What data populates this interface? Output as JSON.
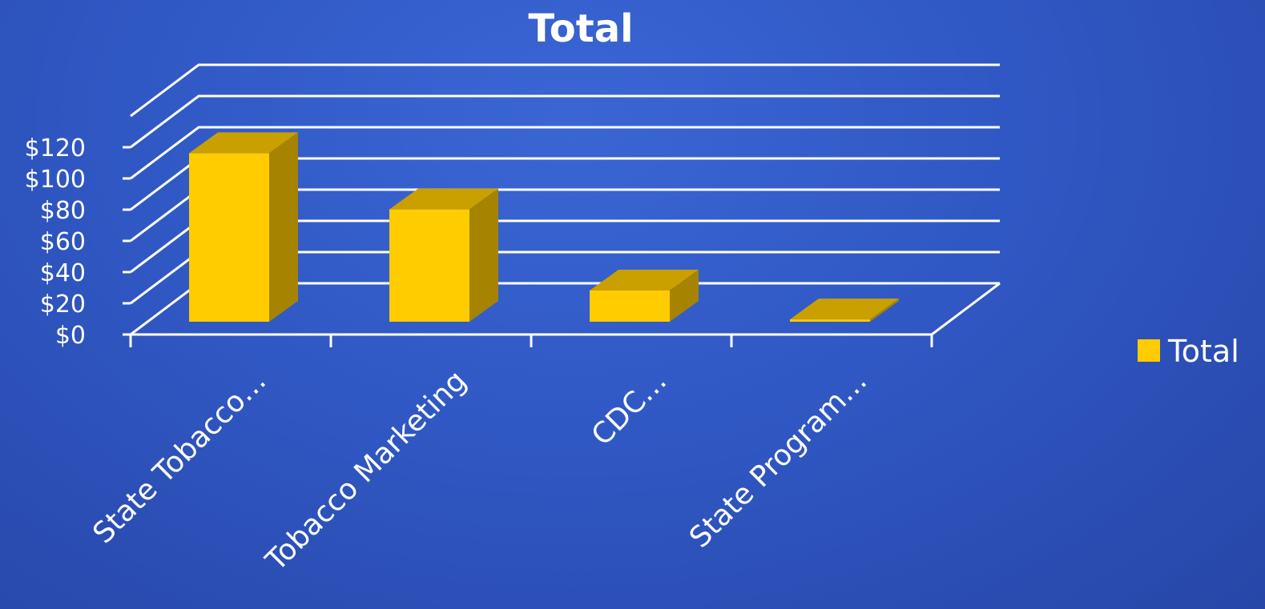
{
  "colors": {
    "bar_front": "#ffcc00",
    "bar_top": "#c9a000",
    "bar_side": "#a68300",
    "axis": "#ffffff"
  },
  "chart_data": {
    "type": "bar",
    "title": "Total",
    "categories": [
      "State Tobacco…",
      "Tobacco Marketing",
      "CDC…",
      "State Program…"
    ],
    "series": [
      {
        "name": "Total",
        "values": [
          108,
          72,
          20,
          1.5
        ]
      }
    ],
    "ylim": [
      0,
      120
    ],
    "yticks": [
      0,
      20,
      40,
      60,
      80,
      100,
      120
    ],
    "ytick_labels": [
      "$0",
      "$20",
      "$40",
      "$60",
      "$80",
      "$100",
      "$120"
    ],
    "xlabel": "",
    "ylabel": "",
    "grid": true,
    "legend_position": "right",
    "style": "3d-column"
  }
}
